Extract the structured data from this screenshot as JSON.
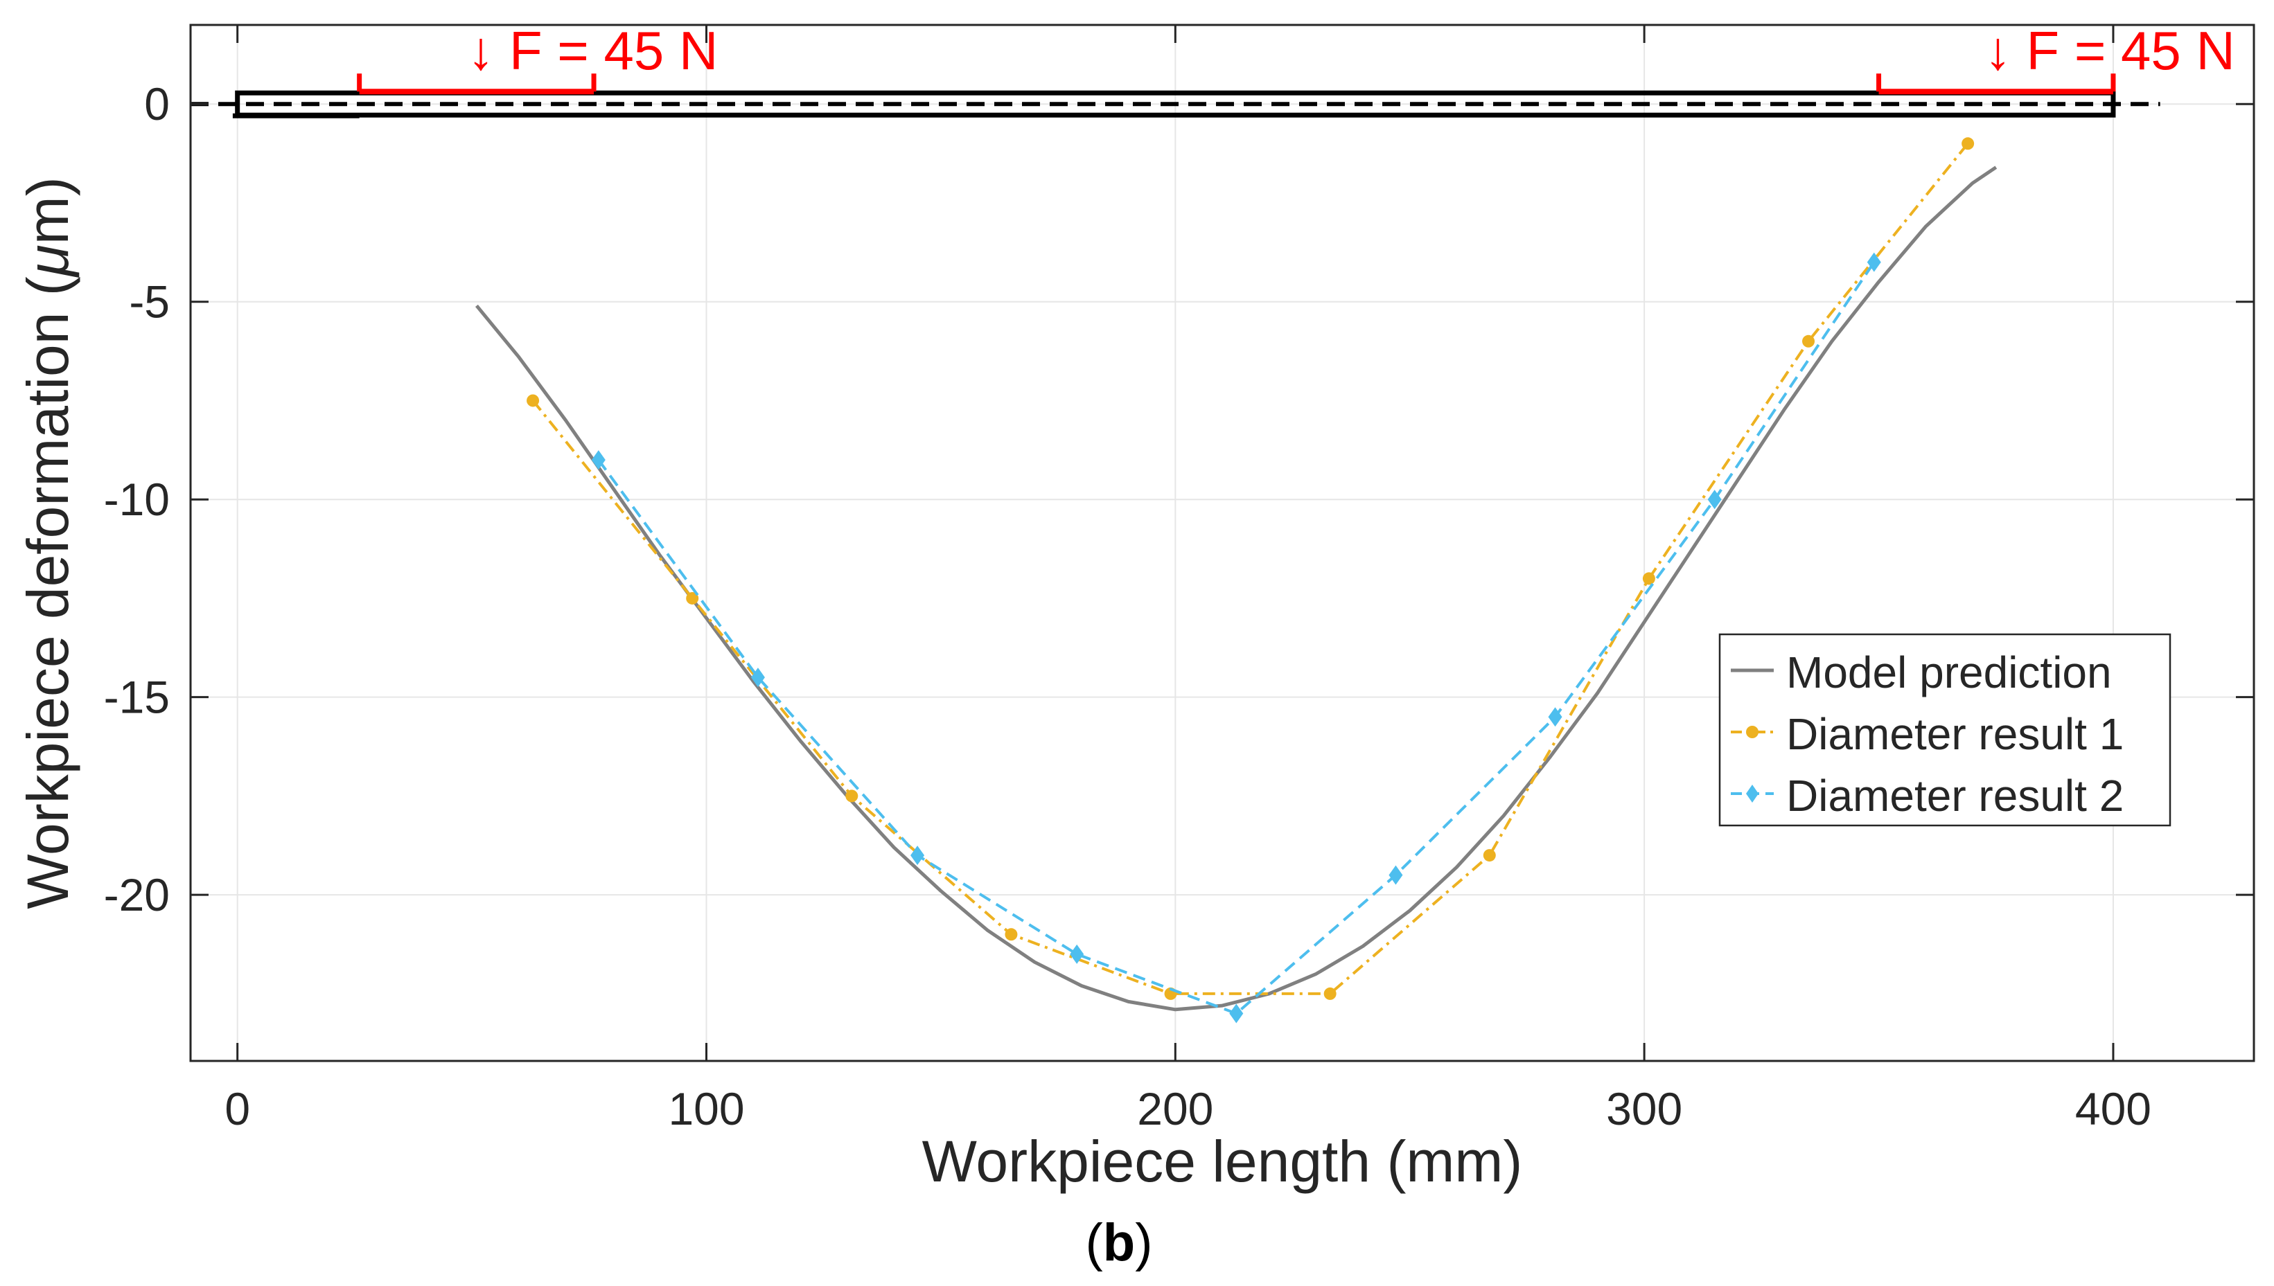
{
  "chart_data": {
    "type": "line",
    "xlabel": "Workpiece length (mm)",
    "ylabel": "Workpiece deformation (μm)",
    "ylabel_prefix": "Workpiece deformation (",
    "ylabel_mu": "μ",
    "ylabel_suffix": "m)",
    "xlim": [
      -10,
      430
    ],
    "ylim": [
      -24.2,
      2
    ],
    "xticks": [
      0,
      100,
      200,
      300,
      400
    ],
    "yticks": [
      0,
      -5,
      -10,
      -15,
      -20
    ],
    "ytick_labels": [
      "0",
      "-5",
      "-10",
      "-15",
      "-20"
    ],
    "grid": true,
    "legend_position": "center-right",
    "workpiece": {
      "x_start": 0,
      "x_end": 400,
      "left_support": [
        26,
        76
      ],
      "right_support": [
        350,
        400
      ],
      "force_left_label": "↓ F = 45 N",
      "force_right_label": "↓ F = 45 N",
      "force_color": "#ff0000"
    },
    "series": [
      {
        "name": "Model prediction",
        "style": "solid",
        "color": "#808080",
        "marker": "none",
        "x": [
          51,
          60,
          70,
          80,
          90,
          100,
          110,
          120,
          130,
          140,
          150,
          160,
          170,
          180,
          190,
          200,
          210,
          220,
          230,
          240,
          250,
          260,
          270,
          280,
          290,
          300,
          310,
          320,
          330,
          340,
          350,
          360,
          370,
          375
        ],
        "y": [
          -5.1,
          -6.4,
          -8.0,
          -9.7,
          -11.4,
          -13.0,
          -14.6,
          -16.1,
          -17.5,
          -18.8,
          -19.9,
          -20.9,
          -21.7,
          -22.3,
          -22.7,
          -22.9,
          -22.8,
          -22.5,
          -22.0,
          -21.3,
          -20.4,
          -19.3,
          -18.0,
          -16.5,
          -14.9,
          -13.1,
          -11.3,
          -9.5,
          -7.7,
          -6.0,
          -4.5,
          -3.1,
          -2.0,
          -1.6
        ]
      },
      {
        "name": "Diameter result 1",
        "style": "dashdot",
        "color": "#edb120",
        "marker": "circle",
        "x": [
          63,
          97,
          131,
          165,
          199,
          233,
          267,
          301,
          335,
          369
        ],
        "y": [
          -7.5,
          -12.5,
          -17.5,
          -21.0,
          -22.5,
          -22.5,
          -19.0,
          -12.0,
          -6.0,
          -1.0
        ]
      },
      {
        "name": "Diameter result 2",
        "style": "dashed",
        "color": "#4dbeee",
        "marker": "diamond",
        "x": [
          77,
          111,
          145,
          179,
          213,
          247,
          281,
          315,
          349
        ],
        "y": [
          -9.0,
          -14.5,
          -19.0,
          -21.5,
          -23.0,
          -19.5,
          -15.5,
          -10.0,
          -4.0
        ]
      }
    ]
  },
  "caption": {
    "open": "(",
    "letter": "b",
    "close": ")"
  }
}
